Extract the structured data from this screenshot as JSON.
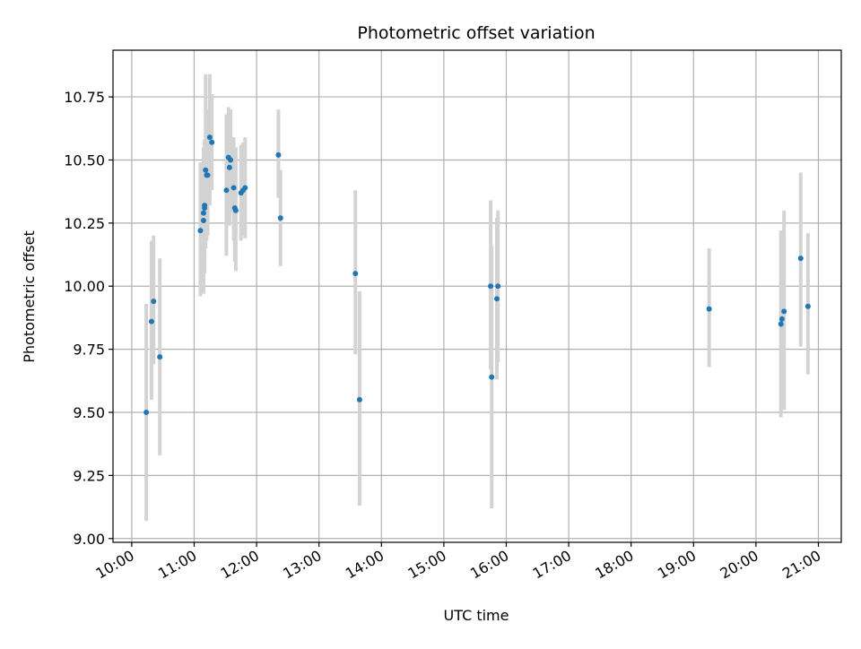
{
  "chart_data": {
    "type": "scatter",
    "title": "Photometric offset variation",
    "xlabel": "UTC time",
    "ylabel": "Photometric offset",
    "xlim": [
      "09:42",
      "21:22"
    ],
    "ylim": [
      8.985,
      10.935
    ],
    "x_ticks": [
      "10:00",
      "11:00",
      "12:00",
      "13:00",
      "14:00",
      "15:00",
      "16:00",
      "17:00",
      "18:00",
      "19:00",
      "20:00",
      "21:00"
    ],
    "y_ticks": [
      "9.00",
      "9.25",
      "9.50",
      "9.75",
      "10.00",
      "10.25",
      "10.50",
      "10.75"
    ],
    "grid": true,
    "marker_color": "#1f77b4",
    "errorbar_color": "#d3d3d3",
    "points": [
      {
        "x": "10:14",
        "y": 9.5,
        "ylow": 9.07,
        "yhigh": 9.93
      },
      {
        "x": "10:19",
        "y": 9.86,
        "ylow": 9.55,
        "yhigh": 10.18
      },
      {
        "x": "10:21",
        "y": 9.94,
        "ylow": 9.69,
        "yhigh": 10.2
      },
      {
        "x": "10:27",
        "y": 9.72,
        "ylow": 9.33,
        "yhigh": 10.11
      },
      {
        "x": "11:06",
        "y": 10.22,
        "ylow": 9.96,
        "yhigh": 10.49
      },
      {
        "x": "11:09",
        "y": 10.26,
        "ylow": 9.97,
        "yhigh": 10.55
      },
      {
        "x": "11:09",
        "y": 10.29,
        "ylow": 10.08,
        "yhigh": 10.5
      },
      {
        "x": "11:10",
        "y": 10.31,
        "ylow": 10.12,
        "yhigh": 10.5
      },
      {
        "x": "11:10",
        "y": 10.32,
        "ylow": 10.05,
        "yhigh": 10.58
      },
      {
        "x": "11:11",
        "y": 10.46,
        "ylow": 10.15,
        "yhigh": 10.84
      },
      {
        "x": "11:12",
        "y": 10.44,
        "ylow": 10.18,
        "yhigh": 10.7
      },
      {
        "x": "11:13",
        "y": 10.44,
        "ylow": 10.2,
        "yhigh": 10.68
      },
      {
        "x": "11:15",
        "y": 10.59,
        "ylow": 10.32,
        "yhigh": 10.84
      },
      {
        "x": "11:17",
        "y": 10.57,
        "ylow": 10.38,
        "yhigh": 10.76
      },
      {
        "x": "11:31",
        "y": 10.38,
        "ylow": 10.12,
        "yhigh": 10.68
      },
      {
        "x": "11:33",
        "y": 10.51,
        "ylow": 10.3,
        "yhigh": 10.71
      },
      {
        "x": "11:34",
        "y": 10.47,
        "ylow": 10.24,
        "yhigh": 10.7
      },
      {
        "x": "11:35",
        "y": 10.5,
        "ylow": 10.29,
        "yhigh": 10.7
      },
      {
        "x": "11:38",
        "y": 10.39,
        "ylow": 10.18,
        "yhigh": 10.59
      },
      {
        "x": "11:39",
        "y": 10.31,
        "ylow": 10.1,
        "yhigh": 10.52
      },
      {
        "x": "11:40",
        "y": 10.3,
        "ylow": 10.06,
        "yhigh": 10.55
      },
      {
        "x": "11:45",
        "y": 10.37,
        "ylow": 10.18,
        "yhigh": 10.56
      },
      {
        "x": "11:47",
        "y": 10.38,
        "ylow": 10.2,
        "yhigh": 10.57
      },
      {
        "x": "11:49",
        "y": 10.39,
        "ylow": 10.19,
        "yhigh": 10.59
      },
      {
        "x": "12:21",
        "y": 10.52,
        "ylow": 10.35,
        "yhigh": 10.7
      },
      {
        "x": "12:23",
        "y": 10.27,
        "ylow": 10.08,
        "yhigh": 10.46
      },
      {
        "x": "13:35",
        "y": 10.05,
        "ylow": 9.73,
        "yhigh": 10.38
      },
      {
        "x": "13:39",
        "y": 9.55,
        "ylow": 9.13,
        "yhigh": 9.98
      },
      {
        "x": "15:45",
        "y": 10.0,
        "ylow": 9.67,
        "yhigh": 10.34
      },
      {
        "x": "15:46",
        "y": 9.64,
        "ylow": 9.12,
        "yhigh": 10.16
      },
      {
        "x": "15:51",
        "y": 9.95,
        "ylow": 9.63,
        "yhigh": 10.27
      },
      {
        "x": "15:52",
        "y": 10.0,
        "ylow": 9.7,
        "yhigh": 10.3
      },
      {
        "x": "19:15",
        "y": 9.91,
        "ylow": 9.68,
        "yhigh": 10.15
      },
      {
        "x": "20:24",
        "y": 9.85,
        "ylow": 9.48,
        "yhigh": 10.22
      },
      {
        "x": "20:25",
        "y": 9.87,
        "ylow": 9.55,
        "yhigh": 10.2
      },
      {
        "x": "20:27",
        "y": 9.9,
        "ylow": 9.51,
        "yhigh": 10.3
      },
      {
        "x": "20:43",
        "y": 10.11,
        "ylow": 9.76,
        "yhigh": 10.45
      },
      {
        "x": "20:50",
        "y": 9.92,
        "ylow": 9.65,
        "yhigh": 10.21
      }
    ]
  }
}
